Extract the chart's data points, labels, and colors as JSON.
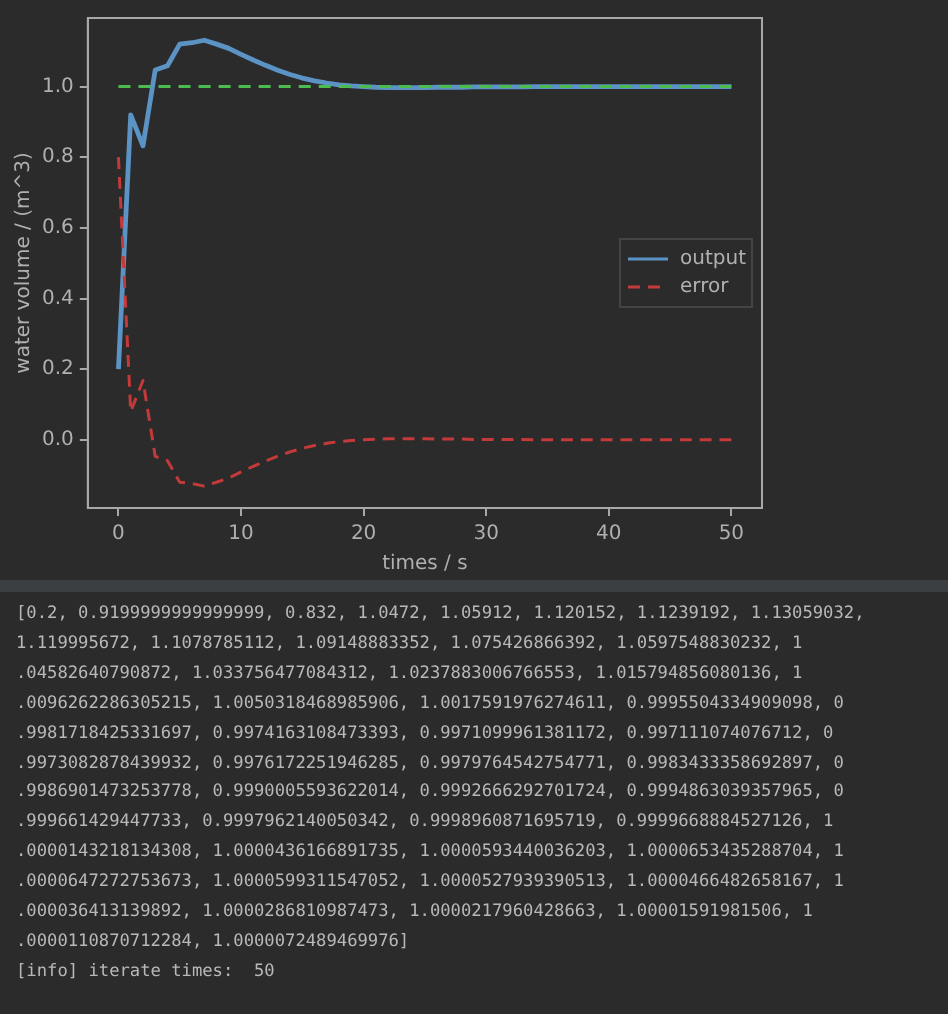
{
  "chart_data": {
    "type": "line",
    "xlabel": "times / s",
    "ylabel": "water volume / (m^3)",
    "xlim": [
      -2.5,
      52.5
    ],
    "ylim": [
      -0.193,
      1.194
    ],
    "xticks": [
      0,
      10,
      20,
      30,
      40,
      50
    ],
    "yticks": [
      {
        "value": 0,
        "label": "0.0"
      },
      {
        "value": 0.2,
        "label": "0.2"
      },
      {
        "value": 0.4,
        "label": "0.4"
      },
      {
        "value": 0.6,
        "label": "0.6"
      },
      {
        "value": 0.8,
        "label": "0.8"
      },
      {
        "value": 1,
        "label": "1.0"
      }
    ],
    "grid": false,
    "legend": "right",
    "marker": "none",
    "x": [
      0,
      1,
      2,
      3,
      4,
      5,
      6,
      7,
      8,
      9,
      10,
      11,
      12,
      13,
      14,
      15,
      16,
      17,
      18,
      19,
      20,
      21,
      22,
      23,
      24,
      25,
      26,
      27,
      28,
      29,
      30,
      31,
      32,
      33,
      34,
      35,
      36,
      37,
      38,
      39,
      40,
      41,
      42,
      43,
      44,
      45,
      46,
      47,
      48,
      49,
      50
    ],
    "series": [
      {
        "name": "output",
        "color": "#5b93c4",
        "line_style": "solid",
        "values": [
          0.2,
          0.92,
          0.832,
          1.047,
          1.059,
          1.12,
          1.124,
          1.131,
          1.12,
          1.108,
          1.091,
          1.075,
          1.06,
          1.046,
          1.034,
          1.024,
          1.016,
          1.01,
          1.005,
          1.002,
          1.0,
          0.998,
          0.997,
          0.997,
          0.997,
          0.997,
          0.998,
          0.998,
          0.998,
          0.999,
          0.999,
          0.999,
          0.999,
          0.999,
          1.0,
          1.0,
          1.0,
          1.0,
          1.0,
          1.0,
          1.0,
          1.0,
          1.0,
          1.0,
          1.0,
          1.0,
          1.0,
          1.0,
          1.0,
          1.0,
          1.0
        ]
      },
      {
        "name": "error",
        "color": "#c43a3a",
        "line_style": "dashed",
        "values": [
          0.8,
          0.08,
          0.168,
          -0.047,
          -0.059,
          -0.12,
          -0.124,
          -0.131,
          -0.12,
          -0.108,
          -0.091,
          -0.075,
          -0.06,
          -0.046,
          -0.034,
          -0.024,
          -0.016,
          -0.01,
          -0.005,
          -0.002,
          0.0,
          0.002,
          0.003,
          0.003,
          0.003,
          0.003,
          0.002,
          0.002,
          0.002,
          0.001,
          0.001,
          0.001,
          0.001,
          0.001,
          0.0,
          0.0,
          0.0,
          0.0,
          0.0,
          0.0,
          0.0,
          0.0,
          0.0,
          0.0,
          0.0,
          0.0,
          0.0,
          0.0,
          0.0,
          0.0,
          0.0
        ]
      },
      {
        "color": "#4cbb50",
        "line_style": "dashed",
        "x": [
          0,
          50
        ],
        "values": [
          1,
          1
        ]
      }
    ],
    "annotations": [
      "[0.2, 0.9199999999999999, 0.832, 1.0472, 1.05912, 1.120152, 1.1239192, 1.13059032,",
      "1.119995672, 1.1078785112, 1.09148883352, 1.075426866392, 1.0597548830232, 1",
      ".04582640790872, 1.033756477084312, 1.0237883006766553, 1.015794856080136, 1",
      ".0096262286305215, 1.0050318468985906, 1.0017591976274611, 0.9995504334909098, 0",
      ".9981718425331697, 0.9974163108473393, 0.9971099961381172, 0.997111074076712, 0",
      ".9973082878439932, 0.9976172251946285, 0.9979764542754771, 0.9983433358692897, 0",
      ".9986901473253778, 0.9990005593622014, 0.9992666292701724, 0.9994863039357965, 0",
      ".999661429447733, 0.9997962140050342, 0.9998960871695719, 0.9999668884527126, 1",
      ".0000143218134308, 1.0000436166891735, 1.0000593440036203, 1.0000653435288704, 1",
      ".0000647272753673, 1.0000599311547052, 1.0000527939390513, 1.0000466482658167, 1",
      ".000036413139892, 1.0000286810987473, 1.0000217960428663, 1.00001591981506, 1",
      ".0000110870712284, 1.0000072489469976]",
      "[info] iterate times:  50"
    ]
  }
}
